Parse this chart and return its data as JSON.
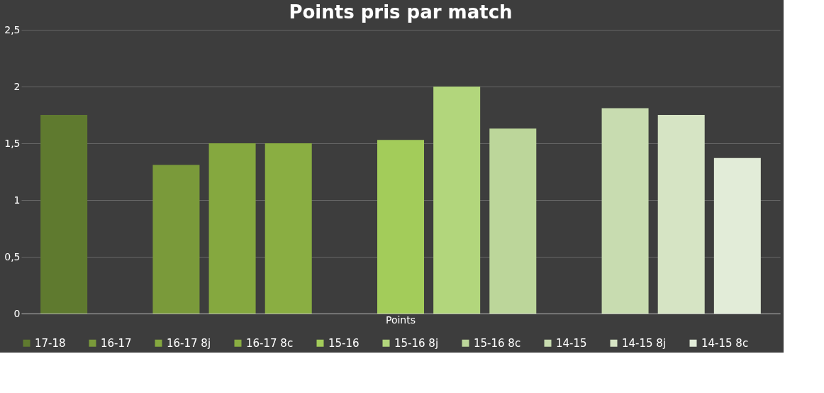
{
  "chart_data": {
    "type": "bar",
    "title": "Points pris par match",
    "categories": [
      "Points"
    ],
    "series": [
      {
        "name": "17-18",
        "color": "#5f7a2f",
        "values": [
          1.75
        ]
      },
      {
        "values": [
          null
        ]
      },
      {
        "name": "16-17",
        "color": "#7a9a3a",
        "values": [
          1.31
        ]
      },
      {
        "name": "16-17 8j",
        "color": "#85a83f",
        "values": [
          1.5
        ]
      },
      {
        "name": "16-17 8c",
        "color": "#8aae42",
        "values": [
          1.5
        ]
      },
      {
        "values": [
          null
        ]
      },
      {
        "name": "15-16",
        "color": "#a3cc5a",
        "values": [
          1.53
        ]
      },
      {
        "name": "15-16 8j",
        "color": "#b2d67c",
        "values": [
          2.0
        ]
      },
      {
        "name": "15-16 8c",
        "color": "#bcd69a",
        "values": [
          1.63
        ]
      },
      {
        "values": [
          null
        ]
      },
      {
        "name": "14-15",
        "color": "#c8dcb0",
        "values": [
          1.81
        ]
      },
      {
        "name": "14-15 8j",
        "color": "#d6e4c4",
        "values": [
          1.75
        ]
      },
      {
        "name": "14-15 8c",
        "color": "#e2ecd8",
        "values": [
          1.37
        ]
      }
    ],
    "ylim": [
      0,
      2.5
    ],
    "yticks": [
      0,
      {
        "value": 0.5,
        "label": "0,5"
      },
      1,
      {
        "value": 1.5,
        "label": "1,5"
      },
      2,
      {
        "value": 2.5,
        "label": "2,5"
      }
    ],
    "grid": "y",
    "legend": "bottom"
  }
}
